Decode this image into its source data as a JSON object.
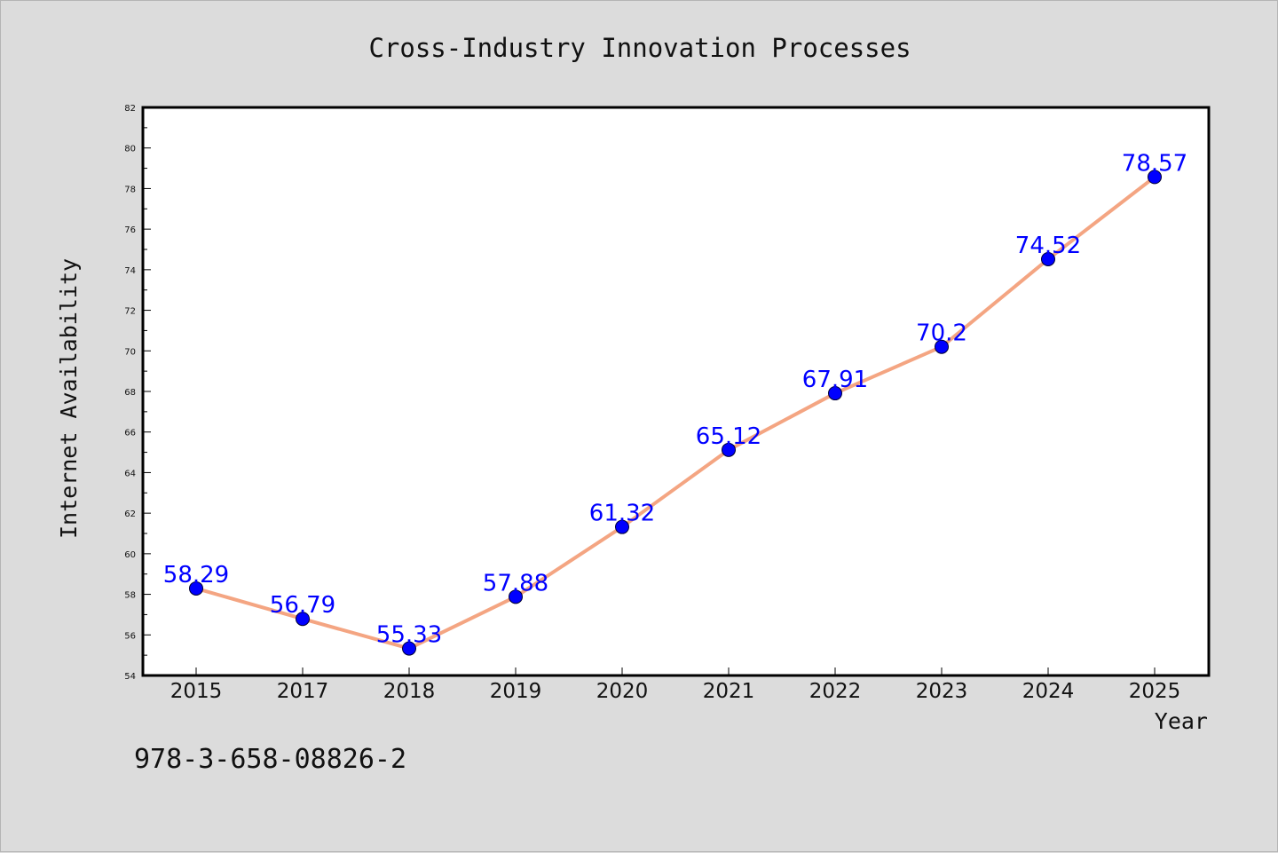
{
  "chart_data": {
    "type": "line",
    "title": "Cross-Industry Innovation Processes",
    "xlabel": "Year",
    "ylabel": "Internet Availability",
    "categories": [
      "2015",
      "2017",
      "2018",
      "2019",
      "2020",
      "2021",
      "2022",
      "2023",
      "2024",
      "2025"
    ],
    "series": [
      {
        "values": [
          58.29,
          56.79,
          55.33,
          57.88,
          61.32,
          65.12,
          67.91,
          70.2,
          74.52,
          78.57
        ]
      }
    ],
    "data_labels": [
      "58.29",
      "56.79",
      "55.33",
      "57.88",
      "61.32",
      "65.12",
      "67.91",
      "70.2",
      "74.52",
      "78.57"
    ],
    "ylim": [
      54,
      82
    ],
    "yticks": [
      "54",
      "56",
      "58",
      "60",
      "62",
      "64",
      "66",
      "68",
      "70",
      "72",
      "74",
      "76",
      "78",
      "80",
      "82"
    ],
    "grid": false,
    "legend": "none",
    "colors": {
      "line": "#f4a582",
      "marker": "#0000ff",
      "label": "#0000ff",
      "background": "#dcdcdc",
      "plot_bg": "#ffffff"
    }
  },
  "footer_text": "978-3-658-08826-2"
}
